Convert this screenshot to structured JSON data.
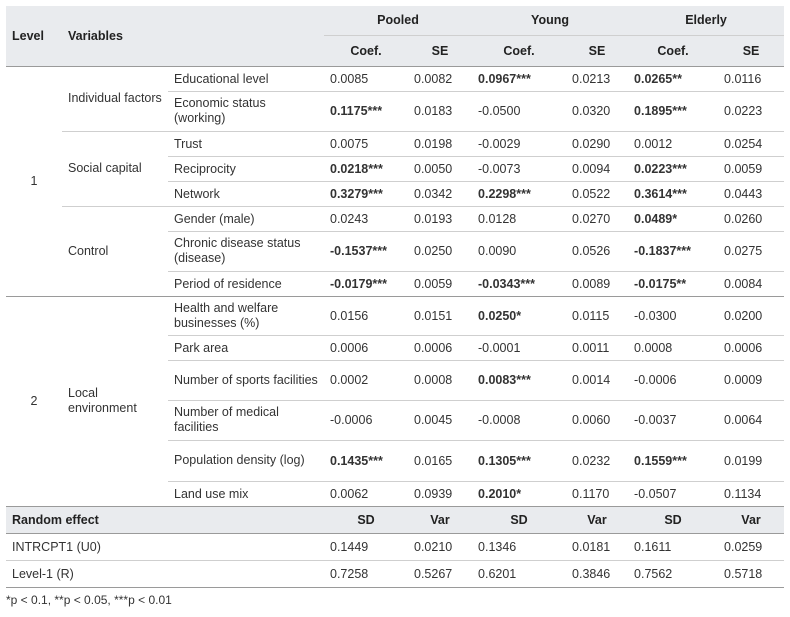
{
  "header": {
    "level": "Level",
    "variables": "Variables",
    "groups": [
      "Pooled",
      "Young",
      "Elderly"
    ],
    "coef": "Coef.",
    "se": "SE"
  },
  "level1": {
    "label": "1",
    "categories": {
      "individual": "Individual factors",
      "social": "Social capital",
      "control": "Control"
    },
    "rows": [
      {
        "var": "Educational level",
        "pc": "0.0085",
        "ps": "0.0082",
        "yc": "0.0967***",
        "ys": "0.0213",
        "ec": "0.0265**",
        "es": "0.0116"
      },
      {
        "var": "Economic status (working)",
        "pc": "0.1175***",
        "ps": "0.0183",
        "yc": "-0.0500",
        "ys": "0.0320",
        "ec": "0.1895***",
        "es": "0.0223"
      },
      {
        "var": "Trust",
        "pc": "0.0075",
        "ps": "0.0198",
        "yc": "-0.0029",
        "ys": "0.0290",
        "ec": "0.0012",
        "es": "0.0254"
      },
      {
        "var": "Reciprocity",
        "pc": "0.0218***",
        "ps": "0.0050",
        "yc": "-0.0073",
        "ys": "0.0094",
        "ec": "0.0223***",
        "es": "0.0059"
      },
      {
        "var": "Network",
        "pc": "0.3279***",
        "ps": "0.0342",
        "yc": "0.2298***",
        "ys": "0.0522",
        "ec": "0.3614***",
        "es": "0.0443"
      },
      {
        "var": "Gender (male)",
        "pc": "0.0243",
        "ps": "0.0193",
        "yc": "0.0128",
        "ys": "0.0270",
        "ec": "0.0489*",
        "es": "0.0260"
      },
      {
        "var": "Chronic disease status (disease)",
        "pc": "-0.1537***",
        "ps": "0.0250",
        "yc": "0.0090",
        "ys": "0.0526",
        "ec": "-0.1837***",
        "es": "0.0275"
      },
      {
        "var": "Period of residence",
        "pc": "-0.0179***",
        "ps": "0.0059",
        "yc": "-0.0343***",
        "ys": "0.0089",
        "ec": "-0.0175**",
        "es": "0.0084"
      }
    ]
  },
  "level2": {
    "label": "2",
    "category": "Local environment",
    "rows": [
      {
        "var": "Health and welfare businesses (%)",
        "pc": "0.0156",
        "ps": "0.0151",
        "yc": "0.0250*",
        "ys": "0.0115",
        "ec": "-0.0300",
        "es": "0.0200"
      },
      {
        "var": "Park area",
        "pc": "0.0006",
        "ps": "0.0006",
        "yc": "-0.0001",
        "ys": "0.0011",
        "ec": "0.0008",
        "es": "0.0006"
      },
      {
        "var": "Number of sports facilities",
        "pc": "0.0002",
        "ps": "0.0008",
        "yc": "0.0083***",
        "ys": "0.0014",
        "ec": "-0.0006",
        "es": "0.0009"
      },
      {
        "var": "Number of medical facilities",
        "pc": "-0.0006",
        "ps": "0.0045",
        "yc": "-0.0008",
        "ys": "0.0060",
        "ec": "-0.0037",
        "es": "0.0064"
      },
      {
        "var": "Population density (log)",
        "pc": "0.1435***",
        "ps": "0.0165",
        "yc": "0.1305***",
        "ys": "0.0232",
        "ec": "0.1559***",
        "es": "0.0199"
      },
      {
        "var": "Land use mix",
        "pc": "0.0062",
        "ps": "0.0939",
        "yc": "0.2010*",
        "ys": "0.1170",
        "ec": "-0.0507",
        "es": "0.1134"
      }
    ]
  },
  "random": {
    "title": "Random effect",
    "sd": "SD",
    "var": "Var",
    "rows": [
      {
        "name": "INTRCPT1 (U0)",
        "psd": "0.1449",
        "pvar": "0.0210",
        "ysd": "0.1346",
        "yvar": "0.0181",
        "esd": "0.1611",
        "evar": "0.0259"
      },
      {
        "name": "Level-1 (R)",
        "psd": "0.7258",
        "pvar": "0.5267",
        "ysd": "0.6201",
        "yvar": "0.3846",
        "esd": "0.7562",
        "evar": "0.5718"
      }
    ]
  },
  "footnote": "*p < 0.1, **p < 0.05, ***p < 0.01"
}
